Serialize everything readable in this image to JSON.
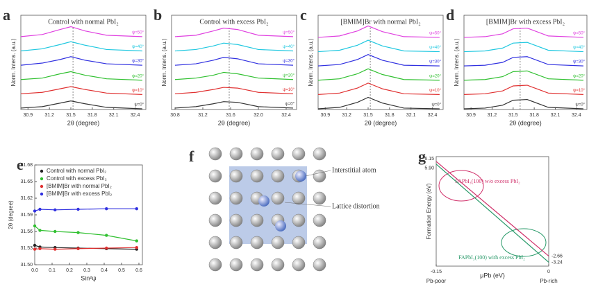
{
  "chart_data": [
    {
      "type": "line",
      "label": "a",
      "title": "Control with normal PbI₂",
      "xlabel": "2θ (degree)",
      "ylabel": "Norm. Intens. (a.u.)",
      "x": [
        30.8,
        31.1,
        31.35,
        31.5,
        31.7,
        32.0,
        32.5
      ],
      "xlim": [
        30.8,
        32.55
      ],
      "ylim": [
        0,
        6.6
      ],
      "xticks": [
        30.9,
        31.2,
        31.5,
        31.8,
        32.1,
        32.4
      ],
      "peak_x": 31.53,
      "series": [
        {
          "name": "ψ=0°",
          "color": "#333333",
          "values": [
            0.1,
            0.2,
            0.45,
            0.6,
            0.4,
            0.15,
            0.05
          ]
        },
        {
          "name": "ψ=10°",
          "color": "#e03030",
          "values": [
            1.1,
            1.2,
            1.45,
            1.6,
            1.4,
            1.15,
            1.05
          ]
        },
        {
          "name": "ψ=20°",
          "color": "#30c030",
          "values": [
            2.1,
            2.2,
            2.5,
            2.65,
            2.4,
            2.15,
            2.05
          ]
        },
        {
          "name": "ψ=30°",
          "color": "#3030e0",
          "values": [
            3.1,
            3.25,
            3.5,
            3.7,
            3.45,
            3.2,
            3.1
          ]
        },
        {
          "name": "ψ=40°",
          "color": "#20c8e0",
          "values": [
            4.1,
            4.25,
            4.55,
            4.75,
            4.5,
            4.2,
            4.1
          ]
        },
        {
          "name": "ψ=50°",
          "color": "#e040e0",
          "values": [
            5.1,
            5.25,
            5.6,
            5.8,
            5.5,
            5.2,
            5.1
          ]
        }
      ]
    },
    {
      "type": "line",
      "label": "b",
      "title": "Control with excess PbI₂",
      "xlabel": "2θ (degree)",
      "ylabel": "Norm. Intens. (a.u.)",
      "x": [
        30.8,
        31.1,
        31.35,
        31.5,
        31.7,
        32.0,
        32.5
      ],
      "xlim": [
        30.75,
        32.55
      ],
      "ylim": [
        0,
        6.6
      ],
      "xticks": [
        30.8,
        31.2,
        31.6,
        {
          "value": 32,
          "label": "32.0"
        },
        32.4
      ],
      "peak_x": 31.58,
      "series": [
        {
          "name": "ψ=0°",
          "color": "#333333",
          "values": [
            0.1,
            0.2,
            0.4,
            0.55,
            0.5,
            0.2,
            0.1
          ]
        },
        {
          "name": "ψ=10°",
          "color": "#e03030",
          "values": [
            1.1,
            1.2,
            1.4,
            1.55,
            1.5,
            1.2,
            1.1
          ]
        },
        {
          "name": "ψ=20°",
          "color": "#30c030",
          "values": [
            2.1,
            2.2,
            2.4,
            2.6,
            2.5,
            2.2,
            2.1
          ]
        },
        {
          "name": "ψ=30°",
          "color": "#3030e0",
          "values": [
            3.1,
            3.2,
            3.45,
            3.65,
            3.55,
            3.2,
            3.1
          ]
        },
        {
          "name": "ψ=40°",
          "color": "#20c8e0",
          "values": [
            4.1,
            4.2,
            4.45,
            4.65,
            4.55,
            4.2,
            4.1
          ]
        },
        {
          "name": "ψ=50°",
          "color": "#e040e0",
          "values": [
            5.1,
            5.2,
            5.5,
            5.7,
            5.6,
            5.2,
            5.1
          ]
        }
      ]
    },
    {
      "type": "line",
      "label": "c",
      "title": "[BMIM]Br with normal PbI₂",
      "xlabel": "2θ (degree)",
      "ylabel": "Norm. Intens. (a.u.)",
      "x": [
        30.8,
        31.1,
        31.35,
        31.5,
        31.7,
        32.0,
        32.5
      ],
      "xlim": [
        30.8,
        32.55
      ],
      "ylim": [
        0,
        6.6
      ],
      "xticks": [
        30.9,
        31.2,
        31.5,
        31.8,
        32.1,
        32.4
      ],
      "peak_x": 31.53,
      "series": [
        {
          "name": "ψ=0°",
          "color": "#333333",
          "values": [
            0.05,
            0.15,
            0.5,
            0.85,
            0.45,
            0.1,
            0.05
          ]
        },
        {
          "name": "ψ=10°",
          "color": "#e03030",
          "values": [
            1.05,
            1.15,
            1.5,
            1.85,
            1.45,
            1.1,
            1.05
          ]
        },
        {
          "name": "ψ=20°",
          "color": "#30c030",
          "values": [
            2.05,
            2.15,
            2.5,
            2.85,
            2.45,
            2.1,
            2.05
          ]
        },
        {
          "name": "ψ=30°",
          "color": "#3030e0",
          "values": [
            3.05,
            3.15,
            3.5,
            3.85,
            3.45,
            3.1,
            3.05
          ]
        },
        {
          "name": "ψ=40°",
          "color": "#20c8e0",
          "values": [
            4.05,
            4.15,
            4.5,
            4.85,
            4.45,
            4.1,
            4.05
          ]
        },
        {
          "name": "ψ=50°",
          "color": "#e040e0",
          "values": [
            5.05,
            5.15,
            5.5,
            5.85,
            5.45,
            5.1,
            5.05
          ]
        }
      ]
    },
    {
      "type": "line",
      "label": "d",
      "title": "[BMIM]Br with excess PbI₂",
      "xlabel": "2θ (degree)",
      "ylabel": "Norm. Intens. (a.u.)",
      "x": [
        30.8,
        31.1,
        31.35,
        31.5,
        31.7,
        32.0,
        32.5
      ],
      "xlim": [
        30.8,
        32.55
      ],
      "ylim": [
        0,
        6.6
      ],
      "xticks": [
        30.9,
        31.2,
        31.5,
        31.8,
        32.1,
        32.4
      ],
      "peak_x": 31.6,
      "series": [
        {
          "name": "ψ=0°",
          "color": "#333333",
          "values": [
            0.05,
            0.1,
            0.3,
            0.65,
            0.7,
            0.15,
            0.05
          ]
        },
        {
          "name": "ψ=10°",
          "color": "#e03030",
          "values": [
            1.05,
            1.1,
            1.3,
            1.65,
            1.7,
            1.15,
            1.05
          ]
        },
        {
          "name": "ψ=20°",
          "color": "#30c030",
          "values": [
            2.05,
            2.1,
            2.3,
            2.65,
            2.7,
            2.15,
            2.05
          ]
        },
        {
          "name": "ψ=30°",
          "color": "#3030e0",
          "values": [
            3.05,
            3.1,
            3.3,
            3.65,
            3.7,
            3.15,
            3.05
          ]
        },
        {
          "name": "ψ=40°",
          "color": "#20c8e0",
          "values": [
            4.05,
            4.1,
            4.3,
            4.65,
            4.7,
            4.15,
            4.05
          ]
        },
        {
          "name": "ψ=50°",
          "color": "#e040e0",
          "values": [
            5.05,
            5.1,
            5.3,
            5.65,
            5.7,
            5.15,
            5.05
          ]
        }
      ]
    },
    {
      "type": "scatter",
      "label": "e",
      "xlabel": "Sin²ψ",
      "ylabel": "2θ (degree)",
      "x": [
        0,
        0.03,
        0.117,
        0.25,
        0.413,
        0.587
      ],
      "xlim": [
        0,
        0.62
      ],
      "ylim": [
        31.5,
        31.68
      ],
      "xticks": [
        {
          "value": 0,
          "label": "0.0"
        },
        0.1,
        0.2,
        0.3,
        0.4,
        0.5,
        0.6
      ],
      "yticks": [
        {
          "value": 31.5,
          "label": "31.50"
        },
        31.53,
        31.56,
        31.59,
        31.62,
        31.65,
        31.68
      ],
      "series": [
        {
          "name": "Control with normal PbI₂",
          "color": "#222222",
          "values": [
            31.535,
            31.532,
            31.531,
            31.53,
            31.529,
            31.528
          ]
        },
        {
          "name": "Control with excess PbI₂",
          "color": "#30c030",
          "values": [
            31.57,
            31.562,
            31.56,
            31.558,
            31.553,
            31.543
          ]
        },
        {
          "name": "[BMIM]Br with normal PbI₂",
          "color": "#e03030",
          "values": [
            31.528,
            31.529,
            31.528,
            31.529,
            31.53,
            31.531
          ]
        },
        {
          "name": "[BMIM]Br with excess PbI₂",
          "color": "#3030e0",
          "values": [
            31.597,
            31.6,
            31.599,
            31.6,
            31.601,
            31.601
          ]
        }
      ]
    },
    {
      "type": "line",
      "label": "g",
      "xlabel": "μPb (eV)",
      "ylabel": "Formation Energy (eV)",
      "x": [
        -0.15,
        0
      ],
      "xlim": [
        -0.15,
        0
      ],
      "ylim": [
        -3.6,
        6.6
      ],
      "xticks": [
        -0.15,
        0
      ],
      "x_end_labels": [
        "Pb-poor",
        "Pb-rich"
      ],
      "series": [
        {
          "name": "FAPbI₃(100) w/o excess PbI₂",
          "color": "#d0306a",
          "values": [
            6.15,
            -2.66
          ],
          "value_labels": [
            "6.15",
            "-2.66"
          ]
        },
        {
          "name": "FAPbI₃(100) with excess PbI₂",
          "color": "#2a9a6a",
          "values": [
            5.9,
            -3.24
          ],
          "value_labels": [
            "5.90",
            "-3.24"
          ]
        }
      ]
    }
  ],
  "diagram": {
    "label": "f",
    "labels": [
      "Interstitial atom",
      "Lattice distortion"
    ]
  }
}
